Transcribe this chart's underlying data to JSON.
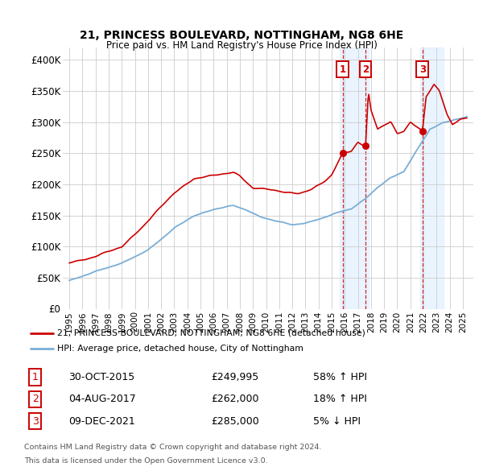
{
  "title": "21, PRINCESS BOULEVARD, NOTTINGHAM, NG8 6HE",
  "subtitle": "Price paid vs. HM Land Registry's House Price Index (HPI)",
  "ylabel_ticks": [
    "£0",
    "£50K",
    "£100K",
    "£150K",
    "£200K",
    "£250K",
    "£300K",
    "£350K",
    "£400K"
  ],
  "ytick_values": [
    0,
    50000,
    100000,
    150000,
    200000,
    250000,
    300000,
    350000,
    400000
  ],
  "ylim": [
    0,
    420000
  ],
  "xlim_start": 1994.5,
  "xlim_end": 2025.8,
  "legend_line1": "21, PRINCESS BOULEVARD, NOTTINGHAM, NG8 6HE (detached house)",
  "legend_line2": "HPI: Average price, detached house, City of Nottingham",
  "transactions": [
    {
      "num": 1,
      "date": "30-OCT-2015",
      "price": "£249,995",
      "change": "58% ↑ HPI",
      "year": 2015.83,
      "price_val": 249995
    },
    {
      "num": 2,
      "date": "04-AUG-2017",
      "price": "£262,000",
      "change": "18% ↑ HPI",
      "year": 2017.58,
      "price_val": 262000
    },
    {
      "num": 3,
      "date": "09-DEC-2021",
      "price": "£285,000",
      "change": "5% ↓ HPI",
      "year": 2021.92,
      "price_val": 285000
    }
  ],
  "footnote1": "Contains HM Land Registry data © Crown copyright and database right 2024.",
  "footnote2": "This data is licensed under the Open Government Licence v3.0.",
  "hpi_color": "#7aaed6",
  "price_color": "#cc0000",
  "grid_color": "#cccccc",
  "background_color": "#ffffff",
  "shade_color": "#ddeeff"
}
